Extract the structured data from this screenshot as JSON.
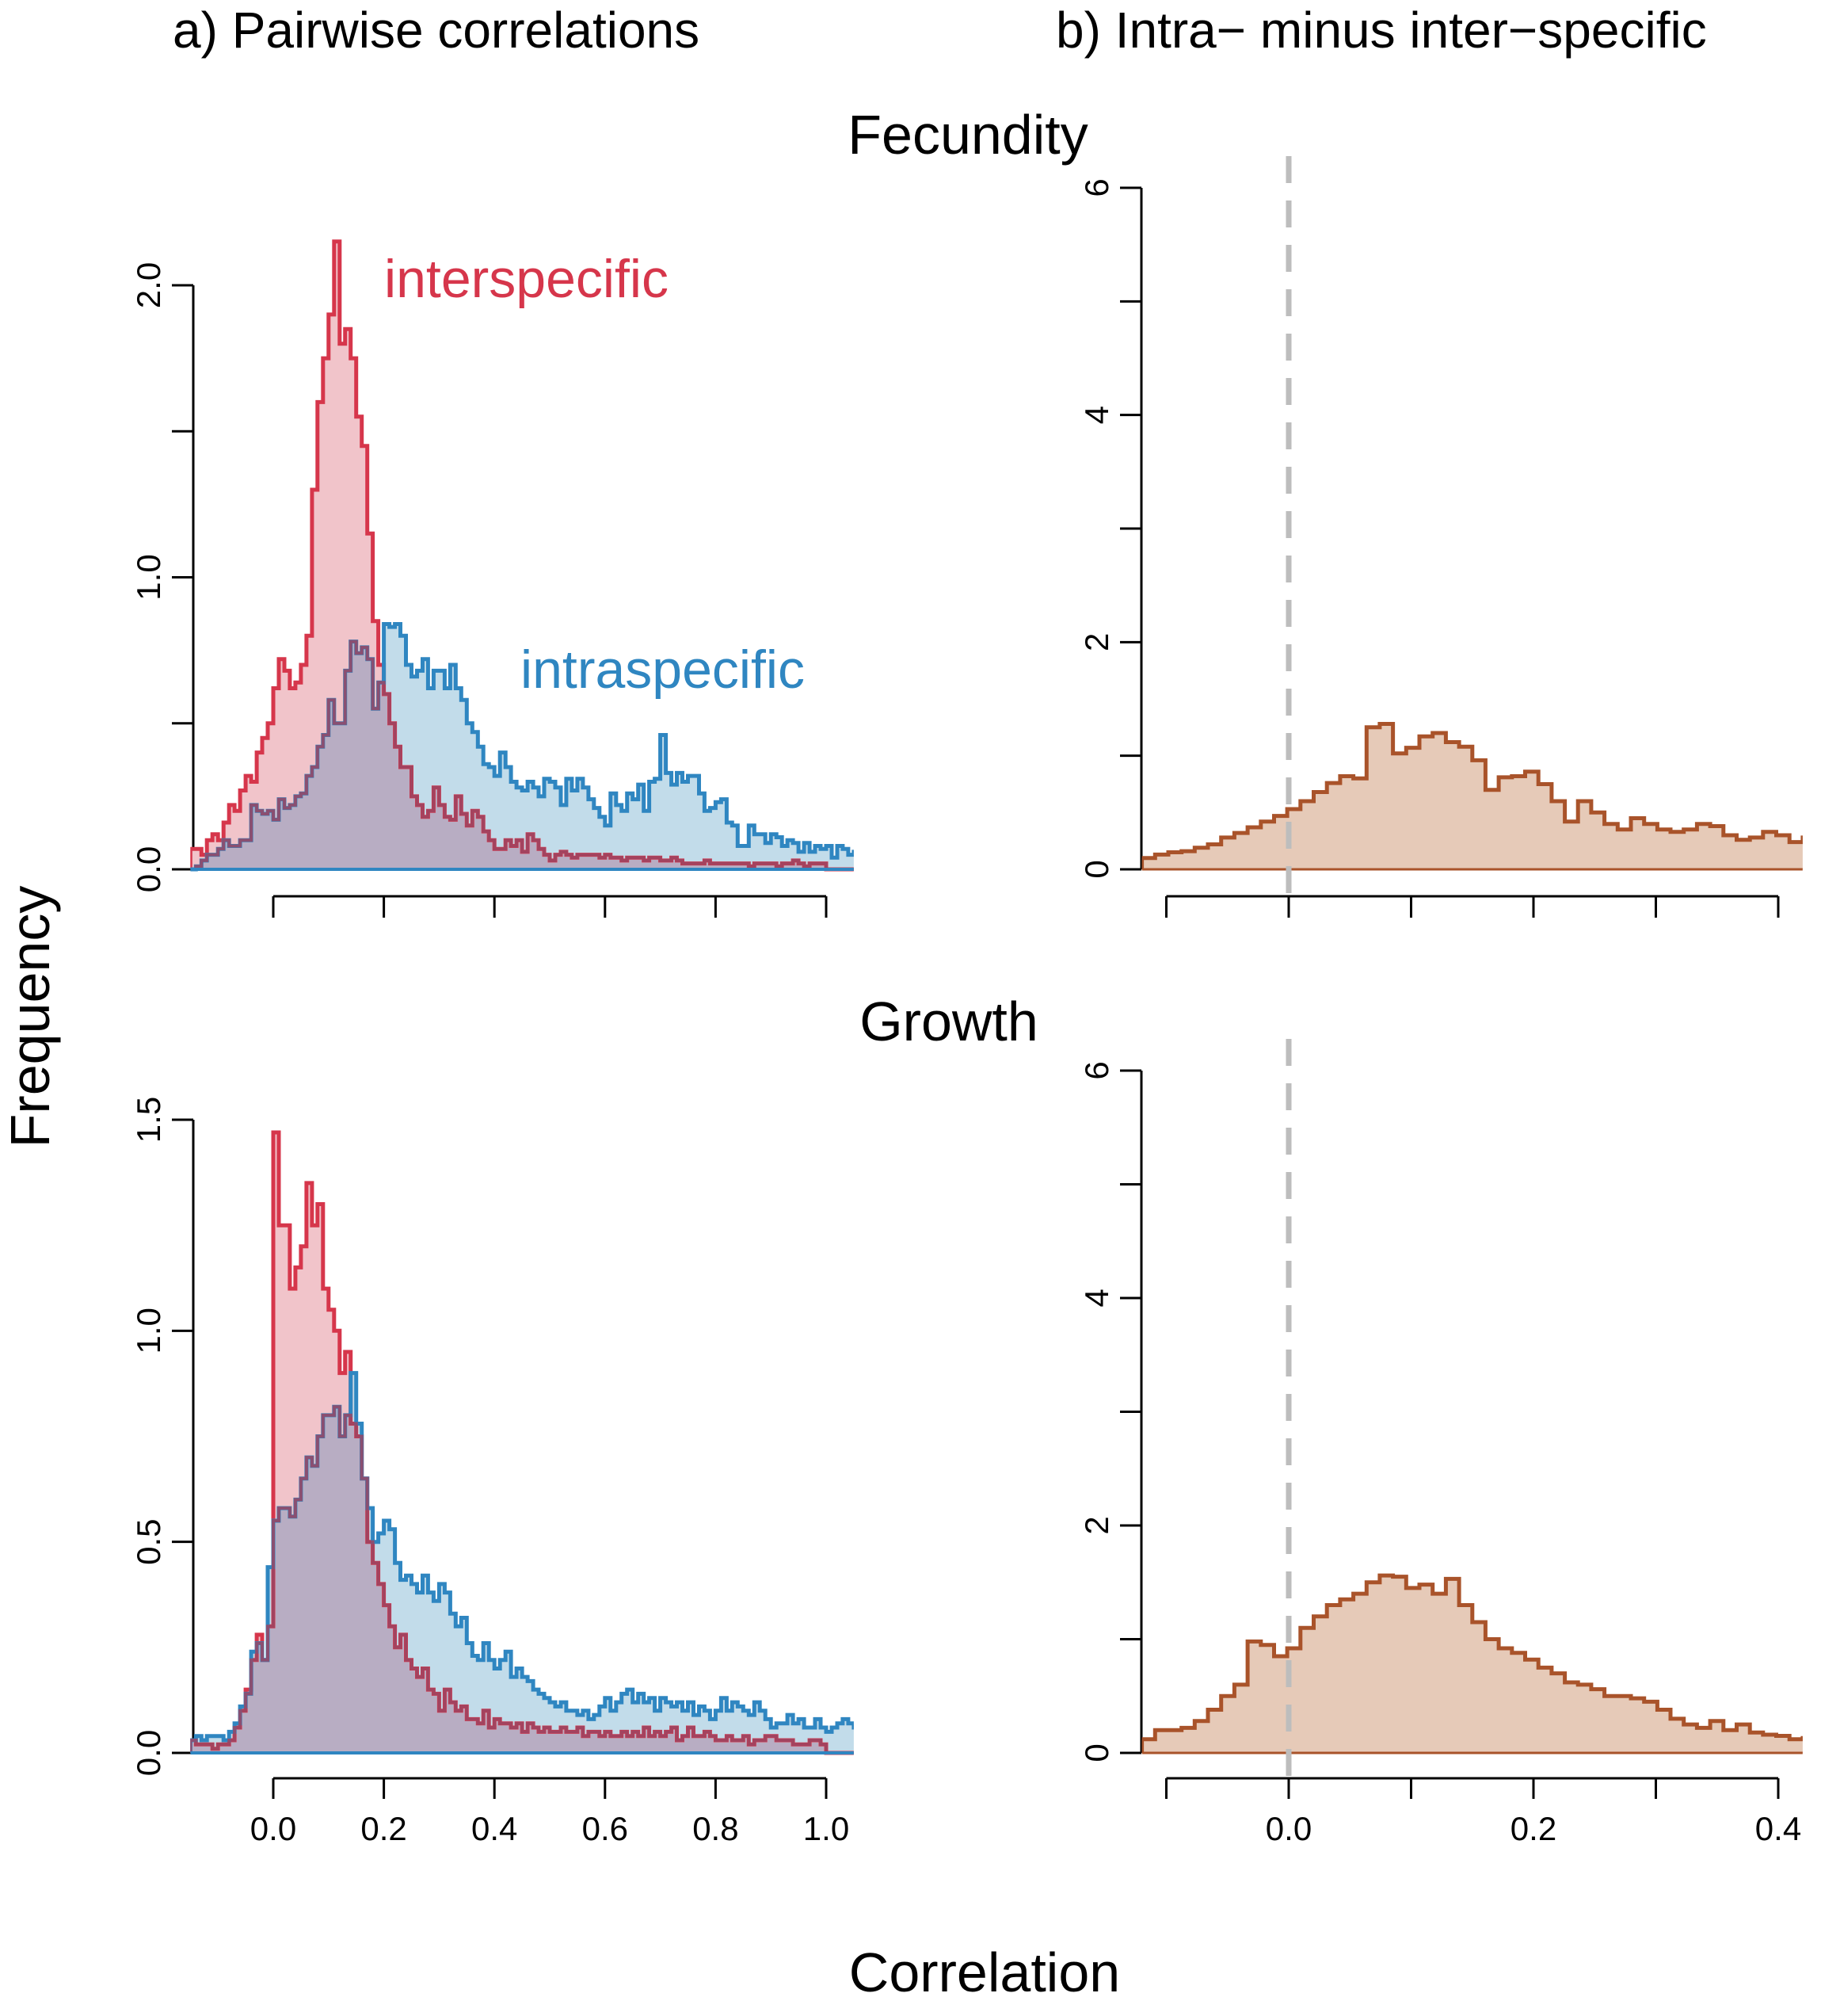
{
  "figure": {
    "title_a": "a) Pairwise correlations",
    "title_b": "b) Intra− minus inter−specific",
    "row_labels": [
      "Fecundity",
      "Growth"
    ],
    "ylabel": "Frequency",
    "xlabel": "Correlation"
  },
  "colors": {
    "inter": "#d6364b",
    "inter_fill": "#f1c4ca",
    "intra": "#2f86c1",
    "intra_fill": "#c2dcea",
    "overlap_fill": "#b8adc3",
    "overlap_line": "#9a4563",
    "diff": "#a9532a",
    "diff_fill": "#e6cab8",
    "zero_line": "#bdbdbd"
  },
  "chart_data": [
    {
      "type": "area",
      "panel": "a-fecundity",
      "xlim": [
        -0.15,
        1.05
      ],
      "ylim": [
        0,
        2.0
      ],
      "xticks": [
        0.0,
        0.2,
        0.4,
        0.6,
        0.8,
        1.0
      ],
      "yticks": [
        0.0,
        0.5,
        1.0,
        1.5,
        2.0
      ],
      "ytick_labels": [
        "0.0",
        "",
        "1.0",
        "",
        "2.0"
      ],
      "annotations": [
        {
          "text": "interspecific",
          "series": "interspecific"
        },
        {
          "text": "intraspecific",
          "series": "intraspecific"
        }
      ],
      "bin_start": -0.15,
      "bin_width": 0.01,
      "series": [
        {
          "name": "interspecific",
          "values": [
            0.07,
            0.07,
            0.05,
            0.1,
            0.12,
            0.1,
            0.16,
            0.22,
            0.2,
            0.27,
            0.32,
            0.3,
            0.4,
            0.45,
            0.5,
            0.62,
            0.72,
            0.68,
            0.62,
            0.64,
            0.7,
            0.8,
            1.3,
            1.6,
            1.75,
            1.9,
            2.15,
            1.8,
            1.85,
            1.75,
            1.55,
            1.45,
            1.15,
            0.85,
            0.7,
            0.6,
            0.5,
            0.42,
            0.35,
            0.35,
            0.25,
            0.22,
            0.18,
            0.2,
            0.28,
            0.22,
            0.18,
            0.17,
            0.25,
            0.19,
            0.15,
            0.2,
            0.18,
            0.13,
            0.1,
            0.07,
            0.07,
            0.1,
            0.08,
            0.1,
            0.06,
            0.12,
            0.1,
            0.07,
            0.05,
            0.03,
            0.05,
            0.06,
            0.05,
            0.04,
            0.05,
            0.05,
            0.05,
            0.05,
            0.04,
            0.05,
            0.04,
            0.04,
            0.03,
            0.04,
            0.04,
            0.04,
            0.03,
            0.04,
            0.04,
            0.03,
            0.03,
            0.04,
            0.03,
            0.02,
            0.02,
            0.02,
            0.02,
            0.03,
            0.02,
            0.02,
            0.02,
            0.02,
            0.02,
            0.02,
            0.02,
            0.01,
            0.02,
            0.02,
            0.02,
            0.02,
            0.01,
            0.02,
            0.02,
            0.03,
            0.02,
            0.01,
            0.02,
            0.02,
            0.02,
            0.0,
            0.0,
            0.0,
            0.0,
            0.0
          ]
        },
        {
          "name": "intraspecific",
          "values": [
            0.0,
            0.01,
            0.03,
            0.05,
            0.05,
            0.07,
            0.1,
            0.08,
            0.08,
            0.1,
            0.1,
            0.22,
            0.2,
            0.19,
            0.2,
            0.17,
            0.24,
            0.21,
            0.22,
            0.25,
            0.26,
            0.32,
            0.35,
            0.42,
            0.46,
            0.58,
            0.5,
            0.5,
            0.68,
            0.78,
            0.74,
            0.76,
            0.72,
            0.55,
            0.64,
            0.84,
            0.83,
            0.84,
            0.8,
            0.7,
            0.66,
            0.68,
            0.72,
            0.62,
            0.68,
            0.68,
            0.62,
            0.7,
            0.62,
            0.58,
            0.5,
            0.47,
            0.42,
            0.36,
            0.35,
            0.32,
            0.4,
            0.35,
            0.3,
            0.28,
            0.27,
            0.3,
            0.28,
            0.25,
            0.31,
            0.3,
            0.28,
            0.22,
            0.31,
            0.27,
            0.31,
            0.28,
            0.24,
            0.21,
            0.18,
            0.15,
            0.26,
            0.22,
            0.2,
            0.26,
            0.24,
            0.29,
            0.2,
            0.3,
            0.31,
            0.46,
            0.33,
            0.29,
            0.33,
            0.3,
            0.32,
            0.32,
            0.26,
            0.2,
            0.21,
            0.23,
            0.24,
            0.16,
            0.15,
            0.08,
            0.08,
            0.15,
            0.12,
            0.12,
            0.09,
            0.12,
            0.11,
            0.08,
            0.1,
            0.09,
            0.06,
            0.09,
            0.06,
            0.08,
            0.07,
            0.08,
            0.04,
            0.08,
            0.07,
            0.05,
            0.06,
            0.06,
            0.04,
            0.05,
            0.03,
            0.08,
            0.1,
            0.04,
            0.05,
            0.08,
            0.05,
            0.1,
            0.04,
            0.06,
            0.1,
            0.18,
            0.0,
            0.0,
            0.0,
            0.0
          ]
        }
      ]
    },
    {
      "type": "area",
      "panel": "b-fecundity",
      "xlim": [
        -0.12,
        0.42
      ],
      "ylim": [
        0,
        6
      ],
      "xticks": [
        -0.1,
        0.0,
        0.1,
        0.2,
        0.3,
        0.4
      ],
      "yticks": [
        0,
        1,
        2,
        3,
        4,
        5,
        6
      ],
      "ytick_labels": [
        "0",
        "",
        "2",
        "",
        "4",
        "",
        "6"
      ],
      "reference_line_x": 0.0,
      "bin_start": -0.12,
      "bin_width": 0.0108,
      "series": [
        {
          "name": "intra minus inter",
          "values": [
            0.1,
            0.13,
            0.15,
            0.16,
            0.19,
            0.22,
            0.28,
            0.32,
            0.37,
            0.42,
            0.47,
            0.53,
            0.6,
            0.68,
            0.76,
            0.82,
            0.8,
            1.25,
            1.28,
            1.02,
            1.07,
            1.17,
            1.2,
            1.12,
            1.08,
            0.96,
            0.7,
            0.81,
            0.82,
            0.86,
            0.75,
            0.6,
            0.42,
            0.6,
            0.5,
            0.4,
            0.35,
            0.45,
            0.4,
            0.35,
            0.33,
            0.35,
            0.4,
            0.38,
            0.3,
            0.26,
            0.28,
            0.33,
            0.3,
            0.24,
            0.28,
            0.25,
            0.22,
            0.25,
            0.2,
            0.22,
            0.17,
            0.2,
            0.15,
            0.18,
            0.17,
            0.18,
            0.17,
            0.15,
            0.18,
            0.25,
            0.13,
            0.12,
            0.1,
            0.1
          ]
        }
      ]
    },
    {
      "type": "area",
      "panel": "a-growth",
      "xlim": [
        -0.15,
        1.05
      ],
      "ylim": [
        0,
        1.5
      ],
      "xticks": [
        0.0,
        0.2,
        0.4,
        0.6,
        0.8,
        1.0
      ],
      "xtick_labels": [
        "0.0",
        "0.2",
        "0.4",
        "0.6",
        "0.8",
        "1.0"
      ],
      "yticks": [
        0.0,
        0.5,
        1.0,
        1.5
      ],
      "ytick_labels": [
        "0.0",
        "0.5",
        "1.0",
        "1.5"
      ],
      "bin_start": -0.15,
      "bin_width": 0.01,
      "series": [
        {
          "name": "interspecific",
          "values": [
            0.03,
            0.02,
            0.02,
            0.02,
            0.01,
            0.02,
            0.02,
            0.03,
            0.06,
            0.1,
            0.15,
            0.22,
            0.28,
            0.22,
            0.3,
            1.47,
            1.25,
            1.25,
            1.1,
            1.15,
            1.2,
            1.35,
            1.25,
            1.3,
            1.1,
            1.05,
            1.0,
            0.9,
            0.95,
            0.78,
            0.75,
            0.65,
            0.5,
            0.45,
            0.4,
            0.35,
            0.3,
            0.25,
            0.28,
            0.22,
            0.2,
            0.18,
            0.2,
            0.15,
            0.14,
            0.1,
            0.15,
            0.12,
            0.1,
            0.11,
            0.08,
            0.08,
            0.07,
            0.1,
            0.06,
            0.08,
            0.07,
            0.07,
            0.06,
            0.07,
            0.05,
            0.07,
            0.06,
            0.05,
            0.06,
            0.05,
            0.05,
            0.06,
            0.05,
            0.05,
            0.06,
            0.04,
            0.05,
            0.05,
            0.04,
            0.05,
            0.04,
            0.04,
            0.05,
            0.04,
            0.05,
            0.04,
            0.06,
            0.04,
            0.05,
            0.04,
            0.05,
            0.06,
            0.03,
            0.04,
            0.06,
            0.04,
            0.04,
            0.05,
            0.04,
            0.03,
            0.03,
            0.04,
            0.03,
            0.03,
            0.04,
            0.02,
            0.03,
            0.03,
            0.04,
            0.04,
            0.03,
            0.03,
            0.03,
            0.02,
            0.02,
            0.02,
            0.03,
            0.03,
            0.02,
            0.0,
            0.0,
            0.0,
            0.0,
            0.0
          ]
        },
        {
          "name": "intraspecific",
          "values": [
            0.03,
            0.04,
            0.03,
            0.04,
            0.04,
            0.04,
            0.03,
            0.05,
            0.07,
            0.11,
            0.14,
            0.24,
            0.26,
            0.22,
            0.44,
            0.55,
            0.58,
            0.58,
            0.56,
            0.6,
            0.65,
            0.7,
            0.68,
            0.75,
            0.8,
            0.8,
            0.82,
            0.75,
            0.8,
            0.9,
            0.78,
            0.65,
            0.58,
            0.5,
            0.52,
            0.55,
            0.53,
            0.45,
            0.41,
            0.42,
            0.4,
            0.38,
            0.42,
            0.38,
            0.36,
            0.4,
            0.38,
            0.33,
            0.3,
            0.32,
            0.26,
            0.23,
            0.22,
            0.26,
            0.22,
            0.2,
            0.22,
            0.24,
            0.18,
            0.2,
            0.18,
            0.17,
            0.15,
            0.14,
            0.13,
            0.12,
            0.11,
            0.12,
            0.1,
            0.1,
            0.09,
            0.1,
            0.08,
            0.09,
            0.11,
            0.13,
            0.1,
            0.12,
            0.14,
            0.15,
            0.12,
            0.14,
            0.12,
            0.13,
            0.1,
            0.13,
            0.12,
            0.11,
            0.12,
            0.1,
            0.12,
            0.09,
            0.11,
            0.1,
            0.08,
            0.1,
            0.13,
            0.1,
            0.12,
            0.11,
            0.1,
            0.09,
            0.12,
            0.1,
            0.08,
            0.06,
            0.07,
            0.07,
            0.09,
            0.07,
            0.08,
            0.06,
            0.06,
            0.08,
            0.06,
            0.05,
            0.06,
            0.07,
            0.08,
            0.07,
            0.06,
            0.05,
            0.06,
            0.05,
            0.06,
            0.07,
            0.06,
            0.04,
            0.03,
            0.07,
            0.05,
            0.04,
            0.06,
            0.05,
            0.08,
            0.06,
            0.0,
            0.0,
            0.0,
            0.0
          ]
        }
      ]
    },
    {
      "type": "area",
      "panel": "b-growth",
      "xlim": [
        -0.12,
        0.42
      ],
      "ylim": [
        0,
        6
      ],
      "xticks": [
        -0.1,
        0.0,
        0.1,
        0.2,
        0.3,
        0.4
      ],
      "xtick_labels": [
        "",
        "0.0",
        "",
        "0.2",
        "",
        "0.4"
      ],
      "yticks": [
        0,
        1,
        2,
        3,
        4,
        5,
        6
      ],
      "ytick_labels": [
        "0",
        "",
        "2",
        "",
        "4",
        "",
        "6"
      ],
      "reference_line_x": 0.0,
      "bin_start": -0.12,
      "bin_width": 0.0108,
      "series": [
        {
          "name": "intra minus inter",
          "values": [
            0.12,
            0.2,
            0.2,
            0.22,
            0.28,
            0.38,
            0.5,
            0.6,
            0.98,
            0.95,
            0.85,
            0.92,
            1.1,
            1.2,
            1.3,
            1.35,
            1.4,
            1.5,
            1.56,
            1.55,
            1.45,
            1.48,
            1.4,
            1.53,
            1.3,
            1.15,
            1.0,
            0.92,
            0.88,
            0.82,
            0.75,
            0.7,
            0.62,
            0.6,
            0.56,
            0.5,
            0.5,
            0.48,
            0.45,
            0.38,
            0.3,
            0.25,
            0.22,
            0.28,
            0.2,
            0.25,
            0.18,
            0.16,
            0.15,
            0.12,
            0.13,
            0.14,
            0.1,
            0.12,
            0.13,
            0.08,
            0.07,
            0.06,
            0.08,
            0.06,
            0.07,
            0.05,
            0.06,
            0.1,
            0.05,
            0.04,
            0.05,
            0.05,
            0.04,
            0.04
          ]
        }
      ]
    }
  ]
}
